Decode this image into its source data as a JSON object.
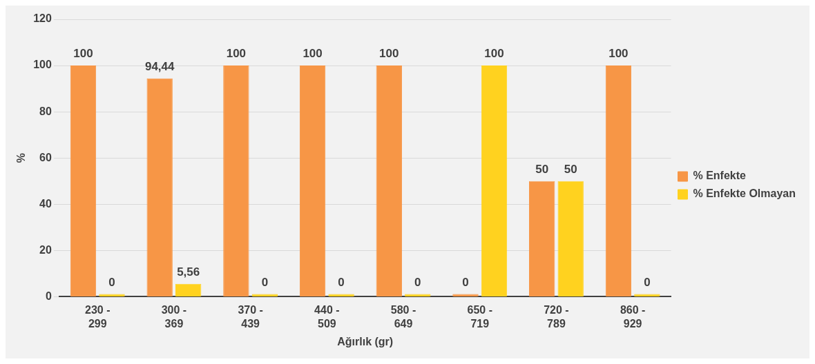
{
  "chart_data": {
    "type": "bar",
    "xlabel": "Ağırlık (gr)",
    "ylabel": "%",
    "categories": [
      "230 - 299",
      "300 - 369",
      "370 - 439",
      "440 - 509",
      "580 - 649",
      "650 - 719",
      "720 - 789",
      "860 - 929"
    ],
    "series": [
      {
        "name": "% Enfekte",
        "color": "#f79646",
        "values": [
          100,
          94.44,
          100,
          100,
          100,
          0,
          50,
          100
        ],
        "value_labels": [
          "100",
          "94,44",
          "100",
          "100",
          "100",
          "0",
          "50",
          "100"
        ]
      },
      {
        "name": "% Enfekte Olmayan",
        "color": "#ffd21f",
        "values": [
          0,
          5.56,
          0,
          0,
          0,
          100,
          50,
          0
        ],
        "value_labels": [
          "0",
          "5,56",
          "0",
          "0",
          "0",
          "100",
          "50",
          "0"
        ]
      }
    ],
    "ylim": [
      0,
      120
    ],
    "yticks": [
      0,
      20,
      40,
      60,
      80,
      100,
      120
    ],
    "grid": "y",
    "legend": "right"
  }
}
